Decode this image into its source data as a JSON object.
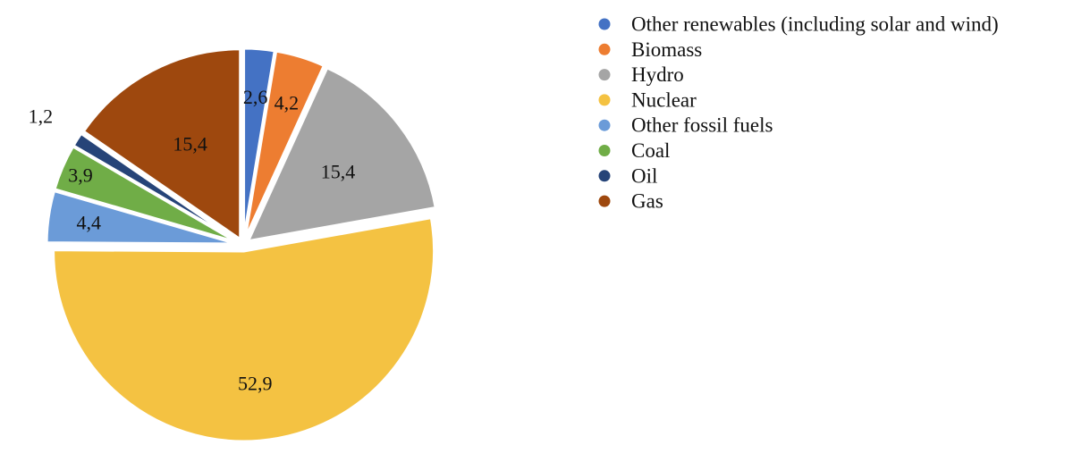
{
  "chart_data": {
    "type": "pie",
    "title": "",
    "legend_placement": "right",
    "decimal_separator": ",",
    "start": "12 o'clock",
    "direction": "clockwise",
    "exploded": true,
    "slices": [
      {
        "name": "Other renewables (including solar and wind)",
        "value": 2.6,
        "label": "2,6",
        "color": "#4472c4"
      },
      {
        "name": "Biomass",
        "value": 4.2,
        "label": "4,2",
        "color": "#ed7d31"
      },
      {
        "name": "Hydro",
        "value": 15.4,
        "label": "15,4",
        "color": "#a5a5a5"
      },
      {
        "name": "Nuclear",
        "value": 52.9,
        "label": "52,9",
        "color": "#f4c242"
      },
      {
        "name": "Other fossil fuels",
        "value": 4.4,
        "label": "4,4",
        "color": "#6b9bd8"
      },
      {
        "name": "Coal",
        "value": 3.9,
        "label": "3,9",
        "color": "#70ad47"
      },
      {
        "name": "Oil",
        "value": 1.2,
        "label": "1,2",
        "color": "#264478"
      },
      {
        "name": "Gas",
        "value": 15.4,
        "label": "15,4",
        "color": "#9e480e"
      }
    ]
  }
}
